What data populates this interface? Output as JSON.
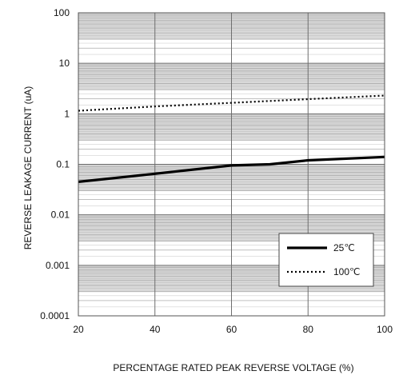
{
  "chart_data": {
    "type": "line",
    "xlabel": "PERCENTAGE RATED PEAK REVERSE VOLTAGE (%)",
    "ylabel": "REVERSE LEAKAGE CURRENT (uA)",
    "xlim": [
      20,
      100
    ],
    "ylim": [
      0.0001,
      100
    ],
    "yscale": "log",
    "x_ticks": [
      20,
      40,
      60,
      80,
      100
    ],
    "x_tick_labels": [
      "20",
      "40",
      "60",
      "80",
      "100"
    ],
    "y_ticks": [
      0.0001,
      0.001,
      0.01,
      0.1,
      1,
      10,
      100
    ],
    "y_tick_labels": [
      "0.0001",
      "0.001",
      "0.01",
      "0.1",
      "1",
      "10",
      "100"
    ],
    "grid": true,
    "legend_position": "bottom-right",
    "series": [
      {
        "name": "25℃",
        "style": "solid",
        "color": "#000000",
        "x": [
          20,
          40,
          60,
          70,
          80,
          100
        ],
        "y": [
          0.045,
          0.065,
          0.095,
          0.1,
          0.12,
          0.14
        ]
      },
      {
        "name": "100℃",
        "style": "dotted",
        "color": "#000000",
        "x": [
          20,
          40,
          60,
          80,
          100
        ],
        "y": [
          1.15,
          1.4,
          1.65,
          1.95,
          2.3
        ]
      }
    ],
    "band_color": "#d9d9d9",
    "grid_color": "#9a9a9a"
  }
}
